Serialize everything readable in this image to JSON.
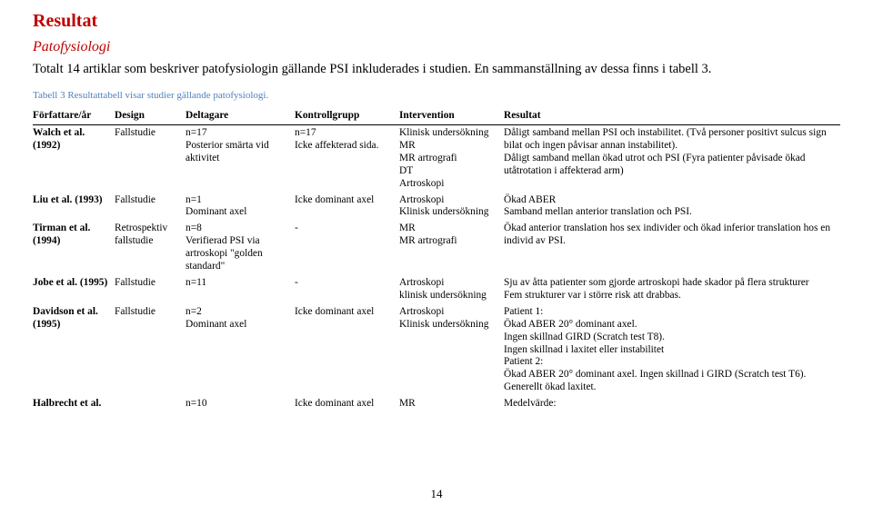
{
  "heading": "Resultat",
  "subheading": "Patofysiologi",
  "intro": "Totalt 14 artiklar som beskriver patofysiologin gällande PSI inkluderades i studien. En sammanställning av dessa finns i tabell 3.",
  "caption": "Tabell 3 Resultattabell visar studier gällande patofysiologi.",
  "page_number": "14",
  "colors": {
    "heading": "#c00000",
    "caption": "#4f81bd",
    "text": "#000000",
    "background": "#ffffff"
  },
  "table": {
    "columns": [
      "Författare/år",
      "Design",
      "Deltagare",
      "Kontrollgrupp",
      "Intervention",
      "Resultat"
    ],
    "rows": [
      {
        "author": "Walch et al. (1992)",
        "design": "Fallstudie",
        "participants": "n=17\nPosterior smärta vid aktivitet",
        "control": "n=17\nIcke affekterad sida.",
        "intervention": "Klinisk undersökning\nMR\nMR artrografi\nDT\nArtroskopi",
        "result": "Dåligt samband mellan PSI och instabilitet. (Två personer positivt sulcus sign bilat och ingen påvisar annan instabilitet).\nDåligt samband mellan ökad utrot och PSI (Fyra patienter påvisade ökad utåtrotation i affekterad arm)"
      },
      {
        "author": "Liu et al. (1993)",
        "design": "Fallstudie",
        "participants": "n=1\nDominant axel",
        "control": "Icke dominant axel",
        "intervention": "Artroskopi\nKlinisk undersökning",
        "result": "Ökad ABER\nSamband mellan anterior translation och PSI."
      },
      {
        "author": "Tirman et al. (1994)",
        "design": "Retrospektiv fallstudie",
        "participants": "n=8\nVerifierad PSI via artroskopi \"golden standard\"",
        "control": "-",
        "intervention": "MR\nMR artrografi",
        "result": "Ökad anterior translation hos sex individer och ökad inferior translation hos en individ av PSI."
      },
      {
        "author": "Jobe et al. (1995)",
        "design": "Fallstudie",
        "participants": "n=11",
        "control": "-",
        "intervention": "Artroskopi\nklinisk undersökning",
        "result": "Sju av åtta patienter som gjorde artroskopi hade skador på flera strukturer\nFem strukturer var i större risk att drabbas."
      },
      {
        "author": "Davidson et al. (1995)",
        "design": "Fallstudie",
        "participants": "n=2\nDominant axel",
        "control": "Icke dominant axel",
        "intervention": "Artroskopi\nKlinisk undersökning",
        "result": "Patient 1:\nÖkad ABER 20° dominant axel.\nIngen skillnad GIRD (Scratch test T8).\nIngen skillnad i laxitet eller instabilitet\nPatient 2:\nÖkad ABER 20° dominant axel. Ingen skillnad i GIRD (Scratch test T6).\nGenerellt ökad laxitet."
      },
      {
        "author": "Halbrecht et al.",
        "design": "",
        "participants": "n=10",
        "control": "Icke dominant axel",
        "intervention": "MR",
        "result": "Medelvärde:"
      }
    ]
  }
}
